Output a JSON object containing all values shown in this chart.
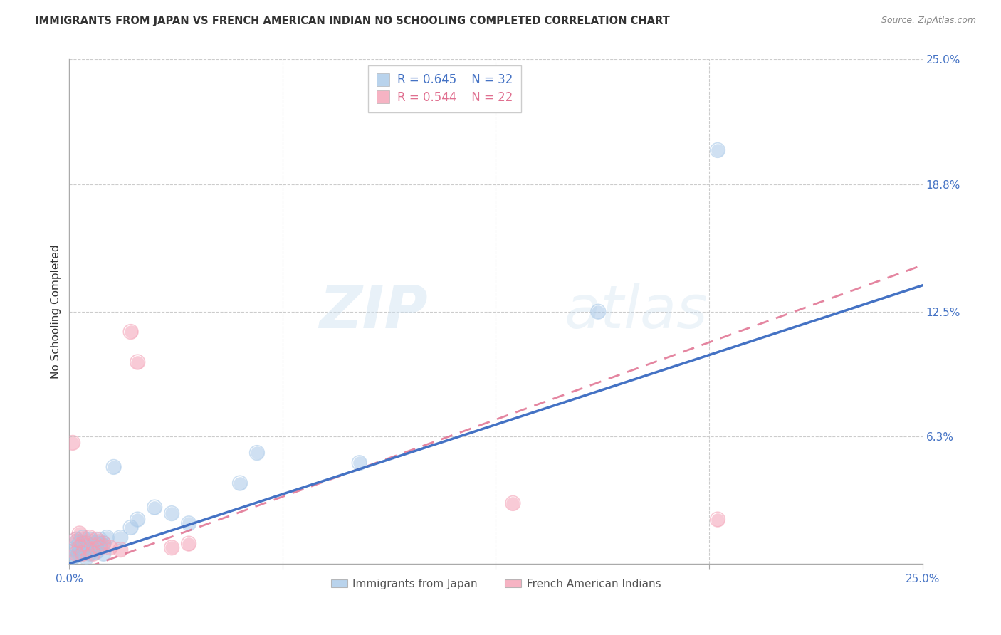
{
  "title": "IMMIGRANTS FROM JAPAN VS FRENCH AMERICAN INDIAN NO SCHOOLING COMPLETED CORRELATION CHART",
  "source": "Source: ZipAtlas.com",
  "ylabel": "No Schooling Completed",
  "xlabel": "",
  "xlim": [
    0,
    0.25
  ],
  "ylim": [
    0,
    0.25
  ],
  "xtick_positions": [
    0.0,
    0.0625,
    0.125,
    0.1875,
    0.25
  ],
  "xtick_labels_show": [
    "0.0%",
    "",
    "",
    "",
    "25.0%"
  ],
  "ytick_right_labels": [
    "6.3%",
    "12.5%",
    "18.8%",
    "25.0%"
  ],
  "ytick_right_values": [
    0.063,
    0.125,
    0.188,
    0.25
  ],
  "grid_color": "#cccccc",
  "watermark_text": "ZIPatlas",
  "blue_color": "#a8c8e8",
  "pink_color": "#f4a0b5",
  "blue_line_color": "#4472c4",
  "pink_line_color": "#e07090",
  "legend_label_blue": "Immigrants from Japan",
  "legend_label_pink": "French American Indians",
  "blue_trend_x": [
    0.0,
    0.25
  ],
  "blue_trend_y": [
    0.0,
    0.138
  ],
  "pink_trend_x": [
    0.0,
    0.25
  ],
  "pink_trend_y": [
    -0.005,
    0.148
  ],
  "blue_x": [
    0.001,
    0.001,
    0.002,
    0.002,
    0.002,
    0.003,
    0.003,
    0.004,
    0.004,
    0.005,
    0.005,
    0.006,
    0.006,
    0.007,
    0.008,
    0.008,
    0.009,
    0.01,
    0.01,
    0.011,
    0.013,
    0.015,
    0.018,
    0.02,
    0.025,
    0.03,
    0.035,
    0.05,
    0.055,
    0.085,
    0.155,
    0.19
  ],
  "blue_y": [
    0.003,
    0.007,
    0.004,
    0.008,
    0.012,
    0.005,
    0.01,
    0.007,
    0.013,
    0.003,
    0.01,
    0.005,
    0.012,
    0.008,
    0.006,
    0.01,
    0.012,
    0.005,
    0.01,
    0.013,
    0.048,
    0.013,
    0.018,
    0.022,
    0.028,
    0.025,
    0.02,
    0.04,
    0.055,
    0.05,
    0.125,
    0.205
  ],
  "pink_x": [
    0.001,
    0.002,
    0.002,
    0.003,
    0.003,
    0.004,
    0.004,
    0.005,
    0.006,
    0.006,
    0.007,
    0.008,
    0.009,
    0.01,
    0.012,
    0.015,
    0.018,
    0.02,
    0.03,
    0.035,
    0.13,
    0.19
  ],
  "pink_y": [
    0.06,
    0.005,
    0.012,
    0.008,
    0.015,
    0.005,
    0.01,
    0.01,
    0.007,
    0.013,
    0.005,
    0.012,
    0.008,
    0.01,
    0.008,
    0.007,
    0.115,
    0.1,
    0.008,
    0.01,
    0.03,
    0.022
  ]
}
